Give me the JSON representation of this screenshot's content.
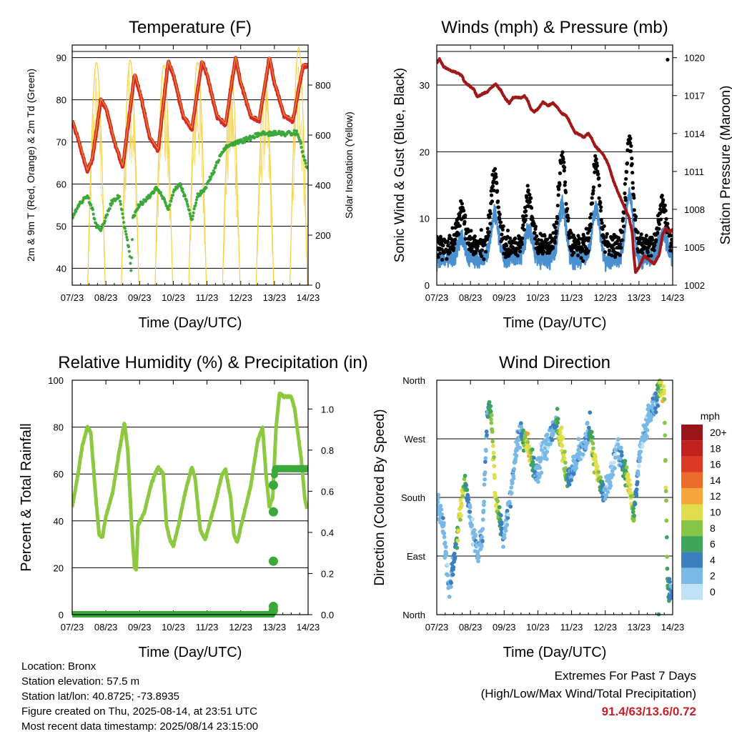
{
  "colors": {
    "temp": "#d42a2a",
    "temp9": "#f0a020",
    "dew": "#3aa83a",
    "solar": "#f5d040",
    "wind": "#4a90d0",
    "gust": "#000000",
    "pressure": "#a01818",
    "rh": "#8cc840",
    "rain": "#3aa83a"
  },
  "xticks": [
    "07/23",
    "08/23",
    "09/23",
    "10/23",
    "11/23",
    "12/23",
    "13/23",
    "14/23"
  ],
  "chart_data": [
    {
      "id": "temperature",
      "type": "line",
      "title": "Temperature (F)",
      "xlabel": "Time (Day/UTC)",
      "ylabel": "2m & 9m T (Red, Orange) & 2m Td (Green)",
      "ylabel_right": "Solar Insolation (Yellow)",
      "ylim": [
        36,
        93
      ],
      "yticks": [
        40,
        50,
        60,
        70,
        80,
        90
      ],
      "ylim_right": [
        0,
        960
      ],
      "yticks_right": [
        0,
        200,
        400,
        600,
        800
      ],
      "x_days": [
        7,
        14
      ],
      "series": [
        {
          "key": "temp",
          "values": [
            [
              7.0,
              75
            ],
            [
              7.2,
              70
            ],
            [
              7.45,
              63
            ],
            [
              7.6,
              66
            ],
            [
              7.85,
              80
            ],
            [
              8.0,
              78
            ],
            [
              8.25,
              70
            ],
            [
              8.5,
              64
            ],
            [
              8.85,
              86
            ],
            [
              9.0,
              82
            ],
            [
              9.3,
              71
            ],
            [
              9.55,
              68
            ],
            [
              9.85,
              89
            ],
            [
              10.0,
              86
            ],
            [
              10.3,
              76
            ],
            [
              10.55,
              73
            ],
            [
              10.85,
              89
            ],
            [
              11.0,
              86
            ],
            [
              11.3,
              76
            ],
            [
              11.55,
              74
            ],
            [
              11.85,
              90
            ],
            [
              12.0,
              84
            ],
            [
              12.3,
              76
            ],
            [
              12.55,
              75
            ],
            [
              12.85,
              90
            ],
            [
              13.0,
              84
            ],
            [
              13.3,
              76
            ],
            [
              13.55,
              75
            ],
            [
              13.85,
              88
            ],
            [
              14.0,
              88
            ]
          ]
        },
        {
          "key": "dew",
          "values": [
            [
              7.0,
              52
            ],
            [
              7.2,
              55
            ],
            [
              7.45,
              57
            ],
            [
              7.6,
              54
            ],
            [
              7.72,
              50
            ],
            [
              7.85,
              49
            ],
            [
              8.0,
              52
            ],
            [
              8.2,
              56
            ],
            [
              8.4,
              57
            ],
            [
              8.55,
              50
            ],
            [
              8.7,
              44
            ],
            [
              8.75,
              39
            ],
            [
              8.8,
              52
            ],
            [
              9.0,
              55
            ],
            [
              9.3,
              57
            ],
            [
              9.5,
              59
            ],
            [
              9.7,
              57
            ],
            [
              9.85,
              54
            ],
            [
              10.0,
              58
            ],
            [
              10.2,
              60
            ],
            [
              10.4,
              56
            ],
            [
              10.55,
              51
            ],
            [
              10.7,
              57
            ],
            [
              10.85,
              58
            ],
            [
              10.95,
              59
            ],
            [
              11.05,
              61
            ],
            [
              11.2,
              63
            ],
            [
              11.35,
              66
            ],
            [
              11.5,
              68
            ],
            [
              11.6,
              69
            ],
            [
              11.85,
              70
            ],
            [
              12.0,
              70
            ],
            [
              12.3,
              71
            ],
            [
              12.6,
              72
            ],
            [
              12.9,
              72
            ],
            [
              13.1,
              72
            ],
            [
              13.4,
              72
            ],
            [
              13.7,
              72
            ],
            [
              13.95,
              64
            ]
          ]
        }
      ],
      "solar": {
        "peaks": [
          [
            7.72,
            890
          ],
          [
            8.72,
            900
          ],
          [
            9.72,
            880
          ],
          [
            10.72,
            890
          ],
          [
            11.72,
            840
          ],
          [
            12.72,
            830
          ],
          [
            13.72,
            950
          ]
        ],
        "width": 0.26
      }
    },
    {
      "id": "winds",
      "type": "scatter",
      "title": "Winds (mph) & Pressure (mb)",
      "xlabel": "Time (Day/UTC)",
      "ylabel": "Sonic Wind & Gust (Blue, Black)",
      "ylabel_right": "Station Pressure (Maroon)",
      "ylim": [
        0,
        36
      ],
      "yticks": [
        0,
        10,
        20,
        30
      ],
      "ylim_right": [
        1002,
        1021
      ],
      "yticks_right": [
        1002,
        1005,
        1008,
        1011,
        1014,
        1017,
        1020
      ],
      "x_days": [
        7,
        14
      ],
      "pressure": [
        [
          7.0,
          1019.6
        ],
        [
          7.08,
          1019.9
        ],
        [
          7.2,
          1019.3
        ],
        [
          7.4,
          1019.0
        ],
        [
          7.6,
          1018.8
        ],
        [
          7.75,
          1018.6
        ],
        [
          7.82,
          1018.1
        ],
        [
          7.95,
          1017.8
        ],
        [
          8.1,
          1017.5
        ],
        [
          8.2,
          1016.9
        ],
        [
          8.35,
          1017.1
        ],
        [
          8.5,
          1017.3
        ],
        [
          8.6,
          1017.6
        ],
        [
          8.75,
          1017.9
        ],
        [
          8.9,
          1017.4
        ],
        [
          9.0,
          1016.9
        ],
        [
          9.15,
          1016.4
        ],
        [
          9.25,
          1016.8
        ],
        [
          9.35,
          1016.9
        ],
        [
          9.5,
          1016.8
        ],
        [
          9.6,
          1017.0
        ],
        [
          9.7,
          1016.6
        ],
        [
          9.8,
          1015.9
        ],
        [
          9.9,
          1015.7
        ],
        [
          10.05,
          1016.1
        ],
        [
          10.15,
          1016.5
        ],
        [
          10.3,
          1016.2
        ],
        [
          10.45,
          1016.4
        ],
        [
          10.6,
          1016.0
        ],
        [
          10.7,
          1015.6
        ],
        [
          10.85,
          1015.4
        ],
        [
          11.0,
          1014.6
        ],
        [
          11.1,
          1014.1
        ],
        [
          11.25,
          1013.9
        ],
        [
          11.35,
          1013.7
        ],
        [
          11.5,
          1014.0
        ],
        [
          11.6,
          1013.6
        ],
        [
          11.7,
          1013.0
        ],
        [
          11.85,
          1012.6
        ],
        [
          11.95,
          1012.3
        ],
        [
          12.1,
          1011.5
        ],
        [
          12.25,
          1010.2
        ],
        [
          12.4,
          1009.2
        ],
        [
          12.55,
          1008.3
        ],
        [
          12.7,
          1007.4
        ],
        [
          12.8,
          1006.2
        ],
        [
          12.85,
          1004.3
        ],
        [
          12.9,
          1003.0
        ],
        [
          13.0,
          1003.4
        ],
        [
          13.15,
          1004.3
        ],
        [
          13.3,
          1004.0
        ],
        [
          13.45,
          1003.7
        ],
        [
          13.6,
          1004.4
        ],
        [
          13.7,
          1006.0
        ],
        [
          13.8,
          1006.5
        ],
        [
          13.9,
          1006.2
        ],
        [
          14.0,
          1006.4
        ]
      ],
      "wind_cycle": {
        "base": 4,
        "peak": 11,
        "gust_base": 8,
        "gust_peak": 17
      },
      "gust_peaks": [
        [
          7.72,
          11
        ],
        [
          8.72,
          17
        ],
        [
          9.72,
          13
        ],
        [
          10.72,
          19
        ],
        [
          11.72,
          18
        ],
        [
          12.72,
          22
        ],
        [
          13.72,
          12
        ]
      ],
      "gust_outlier": [
        [
          13.85,
          33.8
        ]
      ]
    },
    {
      "id": "humidity",
      "type": "line",
      "title": "Relative Humidity (%) & Precipitation (in)",
      "xlabel": "Time (Day/UTC)",
      "ylabel": "Percent & Total Rainfall",
      "ylim": [
        0,
        100
      ],
      "yticks": [
        0,
        20,
        40,
        60,
        80,
        100
      ],
      "ylim_right": [
        0,
        1.14
      ],
      "yticks_right": [
        "0.0",
        "0.2",
        "0.4",
        "0.6",
        "0.8",
        "1.0"
      ],
      "x_days": [
        7,
        14
      ],
      "series": [
        {
          "key": "rh",
          "values": [
            [
              7.0,
              46
            ],
            [
              7.15,
              58
            ],
            [
              7.3,
              72
            ],
            [
              7.45,
              80
            ],
            [
              7.55,
              78
            ],
            [
              7.7,
              50
            ],
            [
              7.8,
              34
            ],
            [
              7.9,
              33
            ],
            [
              8.0,
              42
            ],
            [
              8.2,
              52
            ],
            [
              8.4,
              70
            ],
            [
              8.55,
              82
            ],
            [
              8.65,
              70
            ],
            [
              8.75,
              42
            ],
            [
              8.8,
              30
            ],
            [
              8.85,
              20
            ],
            [
              8.9,
              19
            ],
            [
              8.95,
              38
            ],
            [
              9.15,
              44
            ],
            [
              9.35,
              56
            ],
            [
              9.55,
              63
            ],
            [
              9.7,
              60
            ],
            [
              9.8,
              38
            ],
            [
              9.9,
              32
            ],
            [
              10.0,
              29
            ],
            [
              10.15,
              38
            ],
            [
              10.35,
              52
            ],
            [
              10.55,
              63
            ],
            [
              10.65,
              58
            ],
            [
              10.8,
              36
            ],
            [
              10.95,
              32
            ],
            [
              11.1,
              40
            ],
            [
              11.25,
              48
            ],
            [
              11.45,
              60
            ],
            [
              11.55,
              62
            ],
            [
              11.7,
              50
            ],
            [
              11.8,
              34
            ],
            [
              11.9,
              31
            ],
            [
              12.05,
              40
            ],
            [
              12.3,
              55
            ],
            [
              12.5,
              74
            ],
            [
              12.65,
              80
            ],
            [
              12.75,
              60
            ],
            [
              12.85,
              46
            ],
            [
              12.95,
              50
            ],
            [
              13.05,
              80
            ],
            [
              13.15,
              94
            ],
            [
              13.3,
              93
            ],
            [
              13.5,
              93
            ],
            [
              13.6,
              88
            ],
            [
              13.8,
              66
            ],
            [
              13.9,
              50
            ],
            [
              13.97,
              45
            ]
          ]
        }
      ],
      "rain": [
        [
          7.0,
          0.0
        ],
        [
          12.92,
          0.0
        ],
        [
          12.94,
          0.02
        ],
        [
          12.96,
          0.04
        ],
        [
          12.97,
          0.26
        ],
        [
          12.98,
          0.5
        ],
        [
          12.99,
          0.63
        ],
        [
          13.0,
          0.68
        ],
        [
          13.03,
          0.71
        ],
        [
          14.0,
          0.71
        ]
      ]
    },
    {
      "id": "wind_direction",
      "type": "scatter",
      "title": "Wind Direction",
      "xlabel": "Time (Day/UTC)",
      "ylabel": "Direction (Colored By Speed)",
      "yticks": [
        "North",
        "East",
        "South",
        "West",
        "North"
      ],
      "ylim": [
        0,
        360
      ],
      "x_days": [
        7,
        14
      ],
      "legend": {
        "title": "mph",
        "labels": [
          "20+",
          "18",
          "16",
          "14",
          "12",
          "10",
          "8",
          "6",
          "4",
          "2",
          "0"
        ],
        "colors": [
          "#9a1518",
          "#c0201e",
          "#dd3a26",
          "#ec6a2a",
          "#f5a53a",
          "#e2dd4a",
          "#88c445",
          "#3ea45a",
          "#3b7fbf",
          "#7ab8e6",
          "#bfe2f7"
        ],
        "placement": "right"
      },
      "direction_path": [
        [
          7.0,
          170
        ],
        [
          7.2,
          135
        ],
        [
          7.35,
          40
        ],
        [
          7.5,
          80
        ],
        [
          7.7,
          160
        ],
        [
          7.85,
          210
        ],
        [
          8.0,
          140
        ],
        [
          8.2,
          100
        ],
        [
          8.35,
          120
        ],
        [
          8.5,
          310
        ],
        [
          8.6,
          320
        ],
        [
          8.75,
          180
        ],
        [
          8.9,
          140
        ],
        [
          9.0,
          120
        ],
        [
          9.2,
          190
        ],
        [
          9.35,
          250
        ],
        [
          9.5,
          280
        ],
        [
          9.7,
          260
        ],
        [
          9.85,
          230
        ],
        [
          10.0,
          220
        ],
        [
          10.2,
          255
        ],
        [
          10.35,
          270
        ],
        [
          10.55,
          300
        ],
        [
          10.7,
          270
        ],
        [
          10.85,
          210
        ],
        [
          11.0,
          215
        ],
        [
          11.2,
          245
        ],
        [
          11.4,
          260
        ],
        [
          11.55,
          290
        ],
        [
          11.65,
          240
        ],
        [
          11.8,
          210
        ],
        [
          12.0,
          185
        ],
        [
          12.2,
          220
        ],
        [
          12.35,
          260
        ],
        [
          12.5,
          230
        ],
        [
          12.7,
          205
        ],
        [
          12.85,
          150
        ],
        [
          13.0,
          240
        ],
        [
          13.2,
          290
        ],
        [
          13.35,
          310
        ],
        [
          13.5,
          325
        ],
        [
          13.6,
          350
        ],
        [
          13.75,
          340
        ],
        [
          13.85,
          40
        ],
        [
          14.0,
          30
        ]
      ]
    }
  ],
  "info": {
    "location": "Location: Bronx",
    "elevation": "Station elevation: 57.5 m",
    "latlon": "Station lat/lon: 40.8725; -73.8935",
    "created": "Figure created on Thu, 2025-08-14, at 23:51 UTC",
    "recent": "Most recent data timestamp: 2025/08/14 23:15:00"
  },
  "extremes": {
    "title": "Extremes For Past 7 Days",
    "subtitle": "(High/Low/Max Wind/Total Precipitation)",
    "values": "91.4/63/13.6/0.72"
  }
}
